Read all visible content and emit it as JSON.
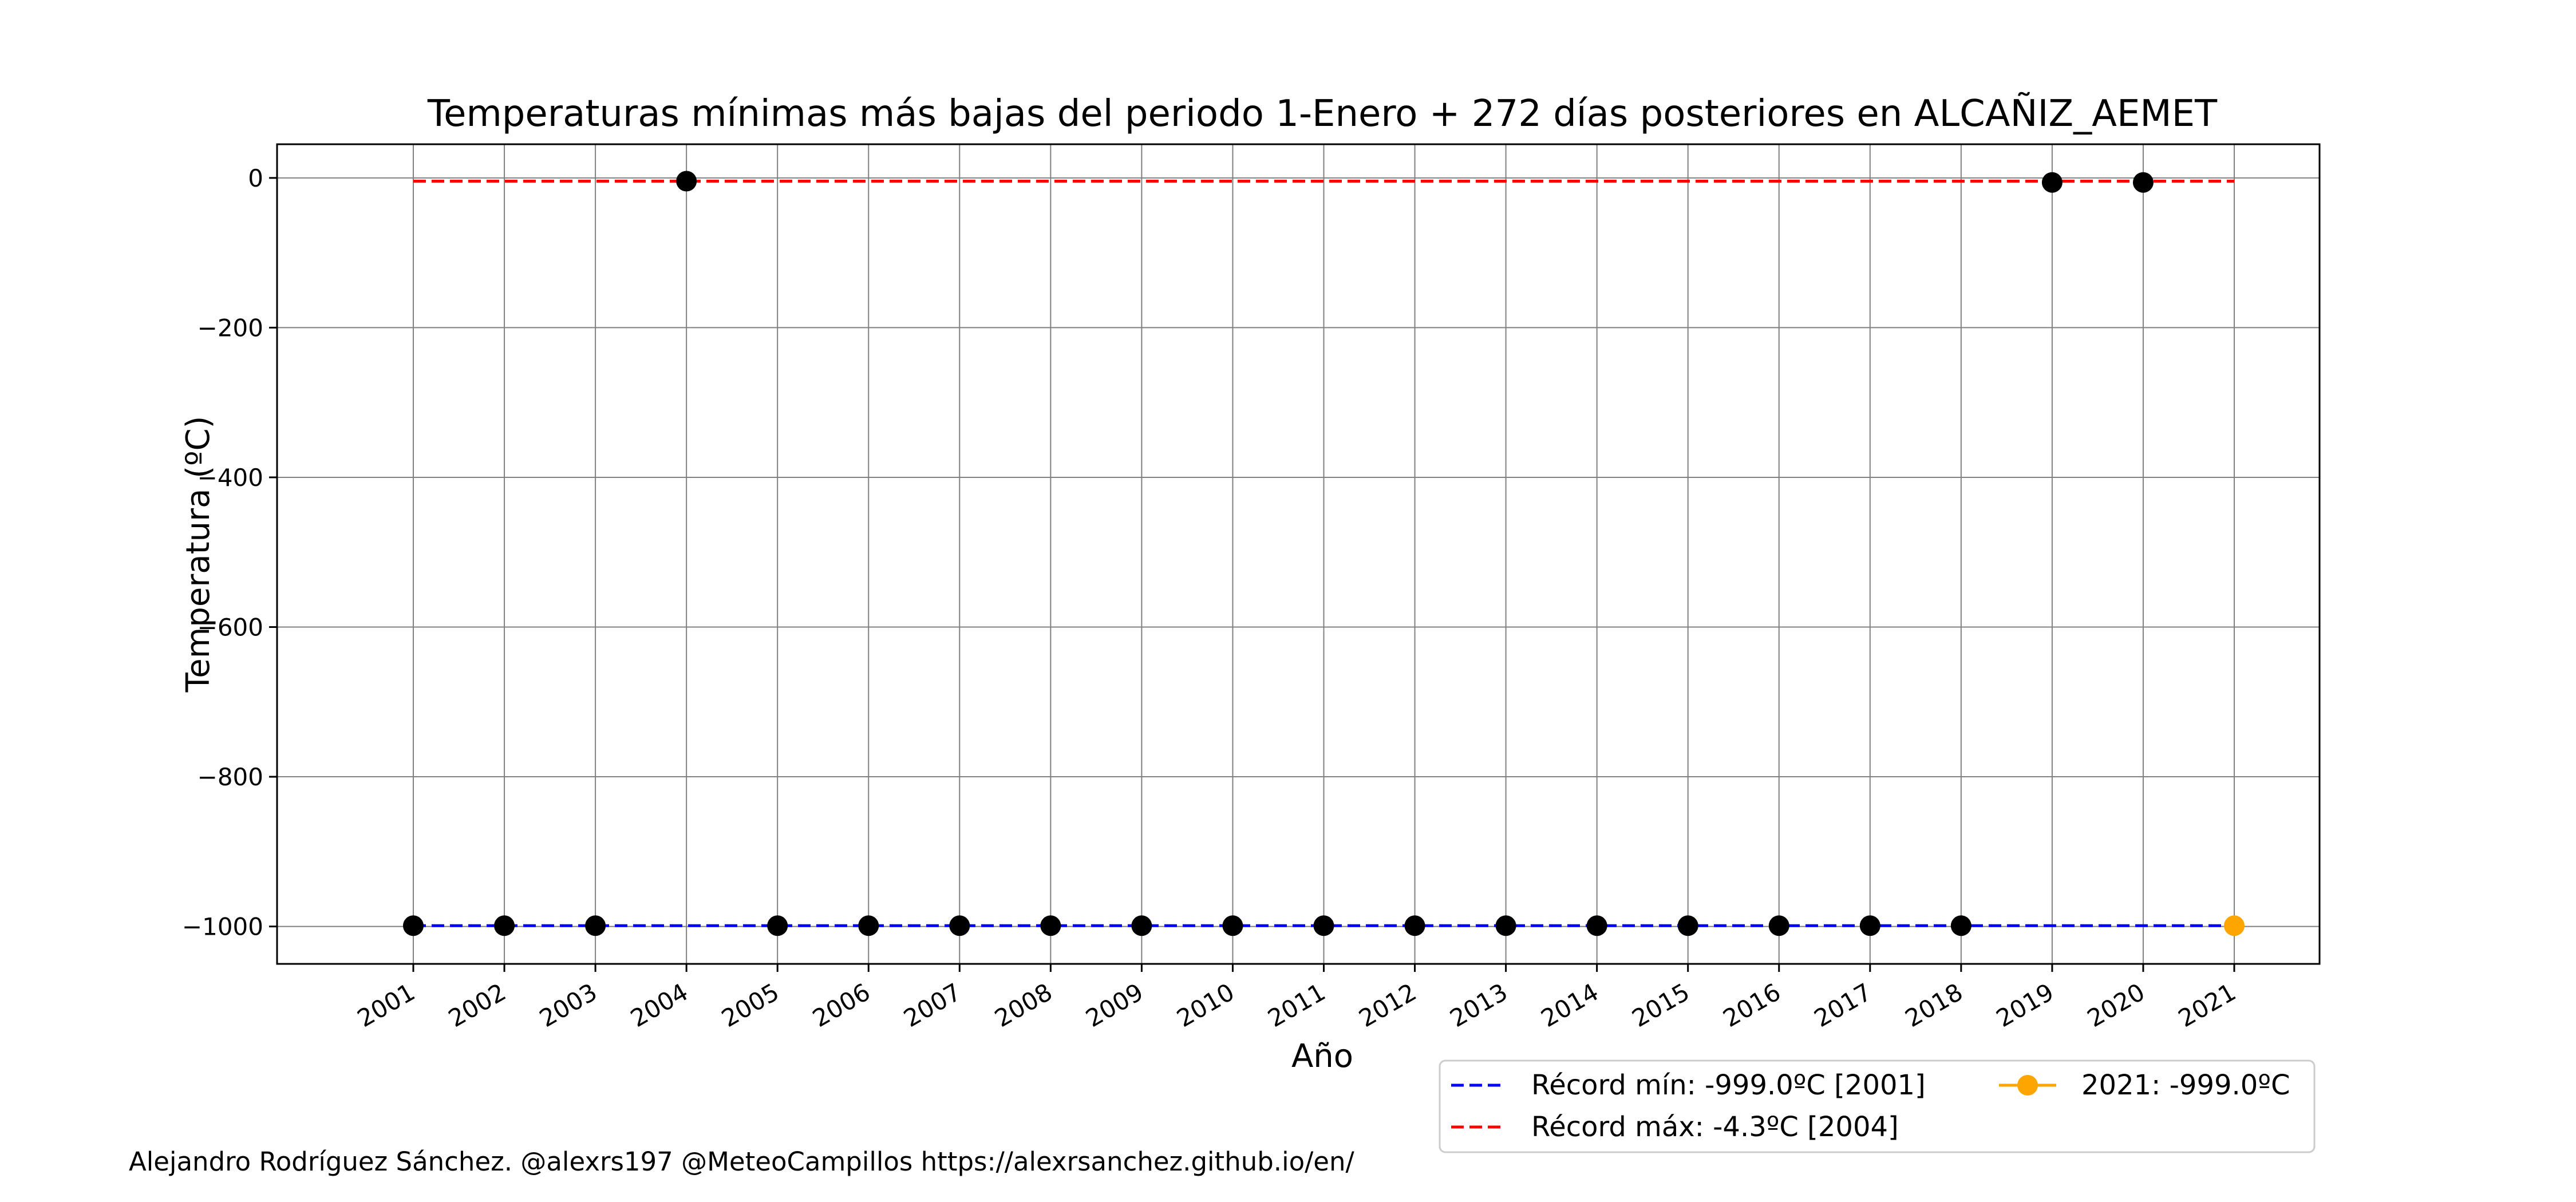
{
  "chart_data": {
    "type": "scatter",
    "title": "Temperaturas mínimas más bajas del periodo 1-Enero + 272 días posteriores en ALCAÑIZ_AEMET",
    "xlabel": "Año",
    "ylabel": "Temperatura (ºC)",
    "ylim": [
      -1050,
      45
    ],
    "grid": true,
    "legend_position": "lower-right, below plot",
    "x_ticks": [
      "2001",
      "2002",
      "2003",
      "2004",
      "2005",
      "2006",
      "2007",
      "2008",
      "2009",
      "2010",
      "2011",
      "2012",
      "2013",
      "2014",
      "2015",
      "2016",
      "2017",
      "2018",
      "2019",
      "2020",
      "2021"
    ],
    "y_ticks": [
      {
        "value": 0,
        "label": "0"
      },
      {
        "value": -200,
        "label": "−200"
      },
      {
        "value": -400,
        "label": "−400"
      },
      {
        "value": -600,
        "label": "−600"
      },
      {
        "value": -800,
        "label": "−800"
      },
      {
        "value": -1000,
        "label": "−1000"
      }
    ],
    "series": [
      {
        "kind": "points",
        "color": "#000000",
        "points": [
          {
            "x": 2001,
            "y": -999.0
          },
          {
            "x": 2002,
            "y": -999.0
          },
          {
            "x": 2003,
            "y": -999.0
          },
          {
            "x": 2004,
            "y": -4.3
          },
          {
            "x": 2005,
            "y": -999.0
          },
          {
            "x": 2006,
            "y": -999.0
          },
          {
            "x": 2007,
            "y": -999.0
          },
          {
            "x": 2008,
            "y": -999.0
          },
          {
            "x": 2009,
            "y": -999.0
          },
          {
            "x": 2010,
            "y": -999.0
          },
          {
            "x": 2011,
            "y": -999.0
          },
          {
            "x": 2012,
            "y": -999.0
          },
          {
            "x": 2013,
            "y": -999.0
          },
          {
            "x": 2014,
            "y": -999.0
          },
          {
            "x": 2015,
            "y": -999.0
          },
          {
            "x": 2016,
            "y": -999.0
          },
          {
            "x": 2017,
            "y": -999.0
          },
          {
            "x": 2018,
            "y": -999.0
          },
          {
            "x": 2019,
            "y": -6.0
          },
          {
            "x": 2020,
            "y": -6.0
          }
        ]
      },
      {
        "kind": "hline",
        "name": "Récord mín: -999.0ºC [2001]",
        "color": "#0000ff",
        "y": -999.0,
        "x_range": [
          2001,
          2021
        ]
      },
      {
        "kind": "hline",
        "name": "Récord máx: -4.3ºC [2004]",
        "color": "#ff0000",
        "y": -4.3,
        "x_range": [
          2001,
          2021
        ]
      },
      {
        "kind": "highlight",
        "name": "2021: -999.0ºC",
        "color": "#ffa500",
        "points": [
          {
            "x": 2021,
            "y": -999.0
          }
        ]
      }
    ]
  },
  "credit": "Alejandro Rodríguez Sánchez. @alexrs197 @MeteoCampillos   https://alexrsanchez.github.io/en/"
}
